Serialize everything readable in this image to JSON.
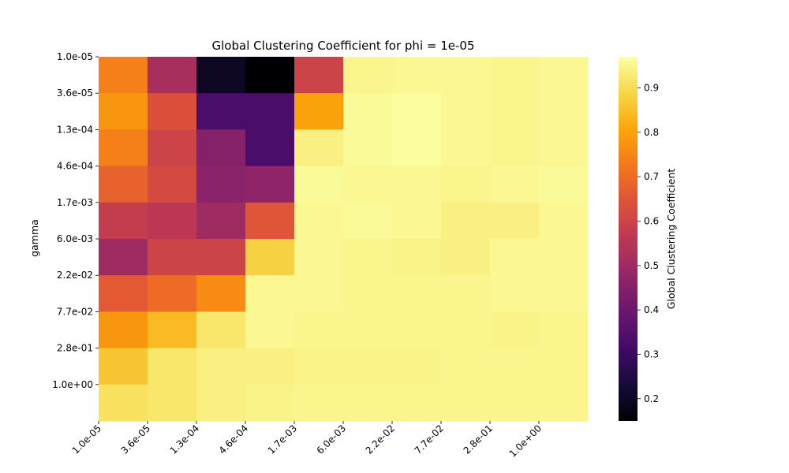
{
  "chart_data": {
    "type": "heatmap",
    "title": "Global Clustering Coefficient for phi = 1e-05",
    "xlabel": "",
    "ylabel": "gamma",
    "x_tick_labels": [
      "1.0e-05",
      "3.6e-05",
      "1.3e-04",
      "4.6e-04",
      "1.7e-03",
      "6.0e-03",
      "2.2e-02",
      "7.7e-02",
      "2.8e-01",
      "1.0e+00"
    ],
    "y_tick_labels": [
      "1.0e-05",
      "3.6e-05",
      "1.3e-04",
      "4.6e-04",
      "1.7e-03",
      "6.0e-03",
      "2.2e-02",
      "7.7e-02",
      "2.8e-01",
      "1.0e+00"
    ],
    "n_cols": 10,
    "n_rows": 10,
    "values": [
      [
        0.74,
        0.52,
        0.2,
        0.15,
        0.6,
        0.95,
        0.955,
        0.955,
        0.95,
        0.955
      ],
      [
        0.78,
        0.64,
        0.33,
        0.33,
        0.8,
        0.96,
        0.965,
        0.955,
        0.95,
        0.955
      ],
      [
        0.74,
        0.6,
        0.45,
        0.33,
        0.94,
        0.96,
        0.965,
        0.955,
        0.95,
        0.955
      ],
      [
        0.68,
        0.62,
        0.46,
        0.47,
        0.96,
        0.955,
        0.955,
        0.95,
        0.955,
        0.96
      ],
      [
        0.58,
        0.56,
        0.5,
        0.65,
        0.955,
        0.96,
        0.955,
        0.94,
        0.94,
        0.955
      ],
      [
        0.5,
        0.6,
        0.6,
        0.88,
        0.955,
        0.95,
        0.945,
        0.94,
        0.955,
        0.955
      ],
      [
        0.66,
        0.7,
        0.76,
        0.955,
        0.955,
        0.95,
        0.95,
        0.95,
        0.955,
        0.955
      ],
      [
        0.78,
        0.84,
        0.92,
        0.955,
        0.95,
        0.95,
        0.95,
        0.95,
        0.945,
        0.95
      ],
      [
        0.86,
        0.92,
        0.94,
        0.94,
        0.945,
        0.945,
        0.945,
        0.95,
        0.95,
        0.95
      ],
      [
        0.91,
        0.92,
        0.94,
        0.945,
        0.95,
        0.95,
        0.95,
        0.95,
        0.95,
        0.95
      ]
    ],
    "vmin": 0.15,
    "vmax": 0.97,
    "colormap": "inferno",
    "colorbar": {
      "label": "Global Clustering Coefficient",
      "ticks": [
        0.2,
        0.3,
        0.4,
        0.5,
        0.6,
        0.7,
        0.8,
        0.9
      ],
      "tick_labels": [
        "0.2",
        "0.3",
        "0.4",
        "0.5",
        "0.6",
        "0.7",
        "0.8",
        "0.9"
      ]
    },
    "grid": false
  }
}
